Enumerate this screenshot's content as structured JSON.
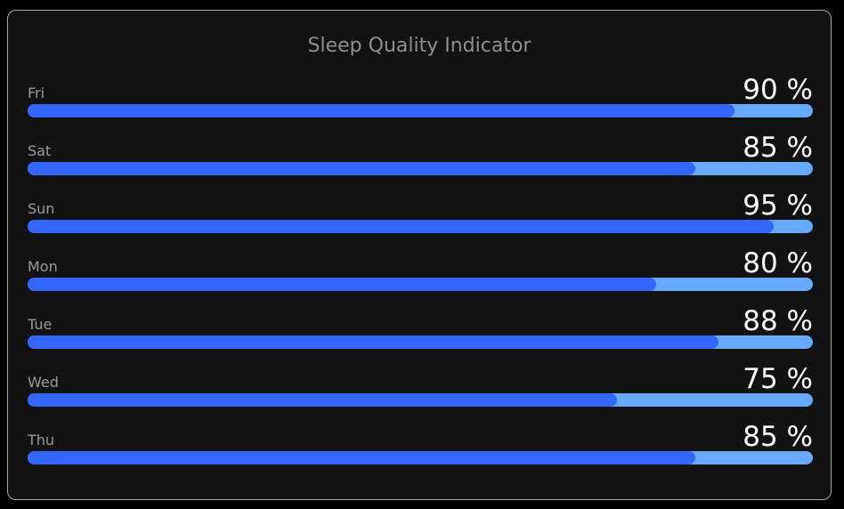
{
  "chart_data": {
    "type": "bar",
    "orientation": "horizontal",
    "title": "Sleep Quality Indicator",
    "categories": [
      "Fri",
      "Sat",
      "Sun",
      "Mon",
      "Tue",
      "Wed",
      "Thu"
    ],
    "values": [
      90,
      85,
      95,
      80,
      88,
      75,
      85
    ],
    "value_labels": [
      "90 %",
      "85 %",
      "95 %",
      "80 %",
      "88 %",
      "75 %",
      "85 %"
    ],
    "xlim": [
      0,
      100
    ],
    "grid": false,
    "legend": "none",
    "colors": {
      "fill": "#3366ff",
      "track": "#66aaff",
      "background": "#121212",
      "border": "#a8a8a8",
      "title": "#8f8f8f",
      "label": "#9a9a9a",
      "value": "#ffffff"
    }
  }
}
